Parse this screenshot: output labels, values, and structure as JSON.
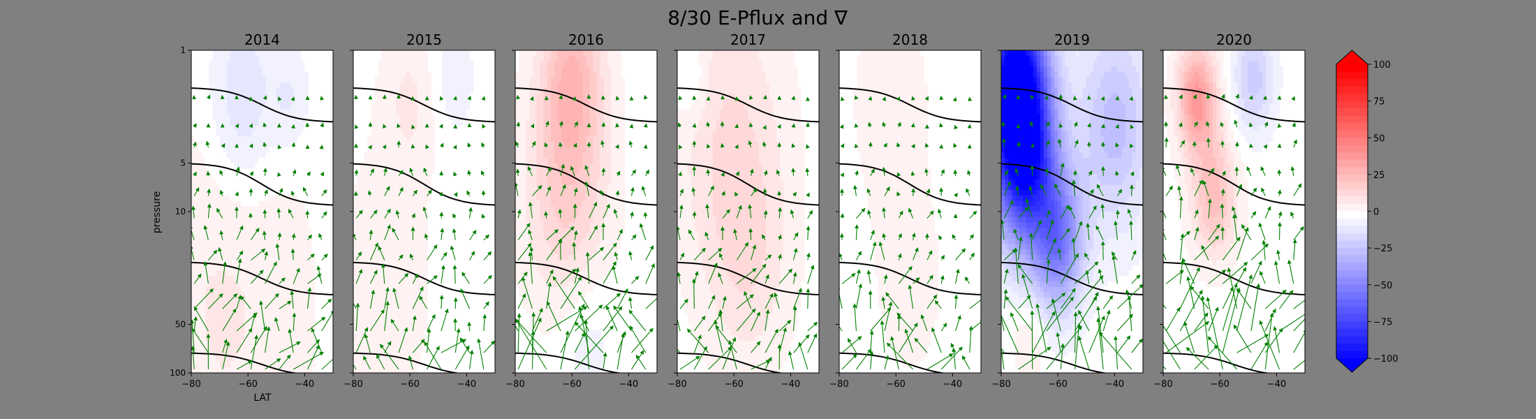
{
  "figure": {
    "title": "8/30 E-Pflux and ∇",
    "ylabel": "pressure",
    "xlabel": "LAT"
  },
  "chart_data": {
    "type": "contour-quiver-panels",
    "title": "8/30 E-Pflux and ∇",
    "xlabel": "LAT",
    "ylabel": "pressure",
    "xlim": [
      -80,
      -30
    ],
    "ylim": [
      100,
      1
    ],
    "yscale": "log",
    "xticks": [
      -80,
      -60,
      -40
    ],
    "yticks": [
      1,
      5,
      10,
      50,
      100
    ],
    "panels": [
      {
        "title": "2014",
        "anomaly": [
          [
            -62,
            2,
            -14,
            24
          ],
          [
            -68,
            40,
            8,
            60
          ],
          [
            -45,
            2,
            -8,
            14
          ]
        ],
        "arrow_scale": 1.0
      },
      {
        "title": "2015",
        "anomaly": [
          [
            -60,
            2,
            8,
            20
          ],
          [
            -45,
            1.5,
            -6,
            16
          ],
          [
            -70,
            30,
            5,
            40
          ]
        ],
        "arrow_scale": 0.9
      },
      {
        "title": "2016",
        "anomaly": [
          [
            -60,
            1.5,
            25,
            22
          ],
          [
            -62,
            8,
            18,
            30
          ],
          [
            -55,
            60,
            -6,
            20
          ]
        ],
        "arrow_scale": 1.4
      },
      {
        "title": "2017",
        "anomaly": [
          [
            -62,
            3,
            12,
            40
          ],
          [
            -55,
            20,
            10,
            30
          ],
          [
            -75,
            1.5,
            -8,
            12
          ]
        ],
        "arrow_scale": 1.0
      },
      {
        "title": "2018",
        "anomaly": [
          [
            -62,
            2,
            5,
            30
          ],
          [
            -55,
            30,
            4,
            30
          ]
        ],
        "arrow_scale": 0.9
      },
      {
        "title": "2019",
        "anomaly": [
          [
            -75,
            1.5,
            -100,
            22
          ],
          [
            -72,
            5,
            -85,
            22
          ],
          [
            -60,
            15,
            -50,
            18
          ],
          [
            -40,
            3,
            -25,
            26
          ],
          [
            -70,
            60,
            8,
            12
          ]
        ],
        "arrow_scale": 1.5
      },
      {
        "title": "2020",
        "anomaly": [
          [
            -68,
            2,
            40,
            14
          ],
          [
            -62,
            8,
            25,
            16
          ],
          [
            -48,
            1.5,
            -20,
            14
          ]
        ],
        "arrow_scale": 1.8
      }
    ],
    "contour_lines": [
      {
        "left_p": 1.7,
        "right_p": 2.8
      },
      {
        "left_p": 5.0,
        "right_p": 9.2
      },
      {
        "left_p": 20.5,
        "right_p": 33
      },
      {
        "left_p": 75,
        "right_p": 105
      }
    ],
    "colorbar": {
      "vmin": -100,
      "vmax": 100,
      "ticks": [
        "100",
        "75",
        "50",
        "25",
        "0",
        "−25",
        "−50",
        "−75",
        "−100"
      ],
      "extend": "both"
    },
    "colors": {
      "negative": "#0000ff",
      "positive": "#ff0000",
      "neutral": "#ffffff",
      "arrows": "#008000",
      "lines": "#000000",
      "background": "#808080"
    }
  }
}
